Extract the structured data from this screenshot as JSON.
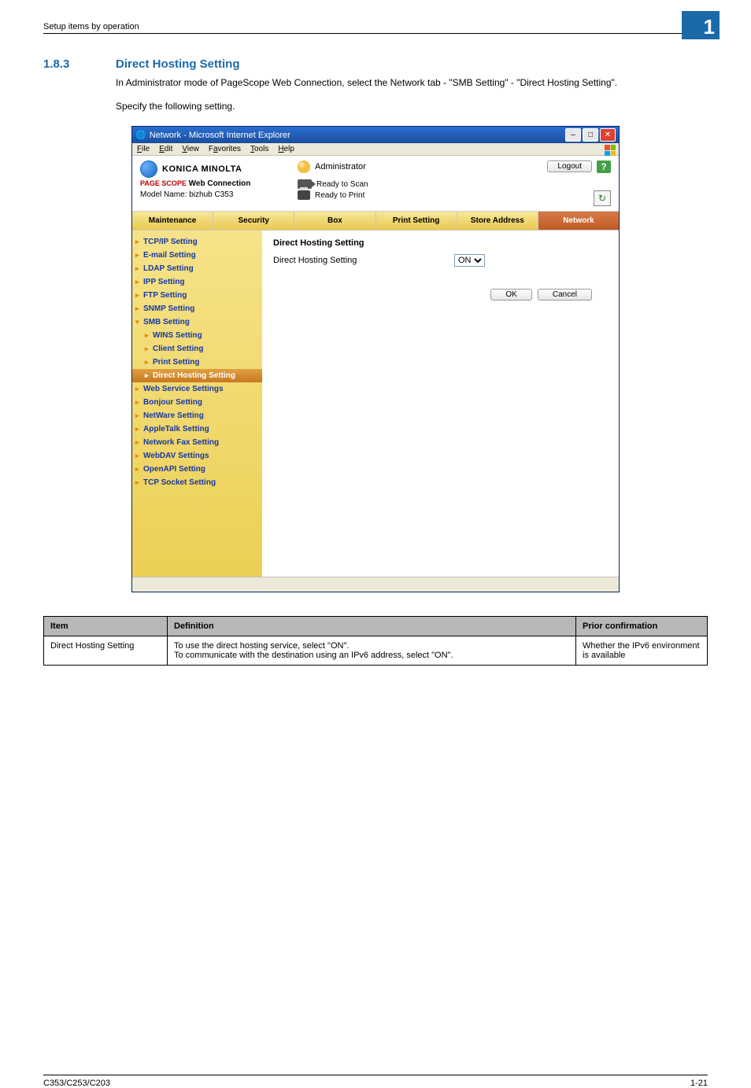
{
  "running_header": "Setup items by operation",
  "chapter_number": "1",
  "section": {
    "number": "1.8.3",
    "title": "Direct Hosting Setting",
    "para1": "In Administrator mode of PageScope Web Connection, select the Network tab - \"SMB Setting\" - \"Direct Hosting Setting\".",
    "para2": "Specify the following setting."
  },
  "ie": {
    "title": "Network - Microsoft Internet Explorer",
    "menu": [
      "File",
      "Edit",
      "View",
      "Favorites",
      "Tools",
      "Help"
    ]
  },
  "psc": {
    "brand": "KONICA MINOLTA",
    "product_prefix": "PAGE SCOPE",
    "product": "Web Connection",
    "model": "Model Name: bizhub C353",
    "mode": "Administrator",
    "logout": "Logout",
    "help": "?",
    "status_scan": "Ready to Scan",
    "status_print": "Ready to Print",
    "refresh": "↻"
  },
  "tabs": [
    "Maintenance",
    "Security",
    "Box",
    "Print Setting",
    "Store Address",
    "Network"
  ],
  "active_tab_index": 5,
  "sidebar": [
    {
      "label": "TCP/IP Setting",
      "type": "item"
    },
    {
      "label": "E-mail Setting",
      "type": "item"
    },
    {
      "label": "LDAP Setting",
      "type": "item"
    },
    {
      "label": "IPP Setting",
      "type": "item"
    },
    {
      "label": "FTP Setting",
      "type": "item"
    },
    {
      "label": "SNMP Setting",
      "type": "item"
    },
    {
      "label": "SMB Setting",
      "type": "open"
    },
    {
      "label": "WINS Setting",
      "type": "sub"
    },
    {
      "label": "Client Setting",
      "type": "sub"
    },
    {
      "label": "Print Setting",
      "type": "sub"
    },
    {
      "label": "Direct Hosting Setting",
      "type": "sub-current"
    },
    {
      "label": "Web Service Settings",
      "type": "item"
    },
    {
      "label": "Bonjour Setting",
      "type": "item"
    },
    {
      "label": "NetWare Setting",
      "type": "item"
    },
    {
      "label": "AppleTalk Setting",
      "type": "item"
    },
    {
      "label": "Network Fax Setting",
      "type": "item"
    },
    {
      "label": "WebDAV Settings",
      "type": "item"
    },
    {
      "label": "OpenAPI Setting",
      "type": "item"
    },
    {
      "label": "TCP Socket Setting",
      "type": "item"
    }
  ],
  "main": {
    "heading": "Direct Hosting Setting",
    "row_label": "Direct Hosting Setting",
    "select_value": "ON",
    "ok": "OK",
    "cancel": "Cancel"
  },
  "table": {
    "headers": [
      "Item",
      "Definition",
      "Prior confirmation"
    ],
    "rows": [
      [
        "Direct Hosting Setting",
        "To use the direct hosting service, select \"ON\".\nTo communicate with the destination using an IPv6 address, select \"ON\".",
        "Whether the IPv6 environment is available"
      ]
    ]
  },
  "footer": {
    "left": "C353/C253/C203",
    "right": "1-21"
  },
  "colors": {
    "heading": "#1a6aa8",
    "chapter_bg": "#1a6aa8",
    "titlebar_top": "#2a6ed2",
    "titlebar_bottom": "#1a4e9c",
    "tab_grad_top": "#f7e79a",
    "tab_grad_bottom": "#e9c94f",
    "tab_active_top": "#d87a48",
    "tab_active_bottom": "#c05a25",
    "sidebar_top": "#f6e388",
    "sidebar_bottom": "#eccf55",
    "link": "#1537a8",
    "orange_marker": "#ea8a00",
    "table_header_bg": "#b7b8ba"
  }
}
